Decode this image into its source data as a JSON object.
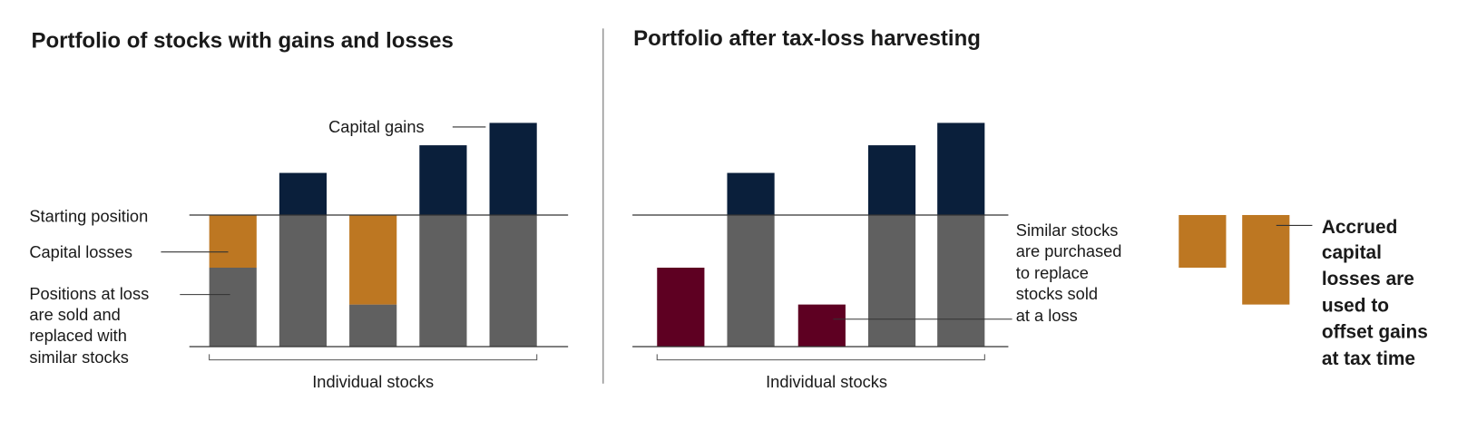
{
  "colors": {
    "gain": "#0a1f3b",
    "base": "#606060",
    "loss": "#bd7722",
    "replaced": "#5e0022",
    "divider": "#999999"
  },
  "left": {
    "title": "Portfolio of stocks with gains and losses",
    "labels": {
      "starting_position": "Starting position",
      "capital_losses": "Capital losses",
      "positions_at_loss": [
        "Positions at loss",
        "are sold and",
        "replaced with",
        "similar stocks"
      ],
      "capital_gains": "Capital gains",
      "x_axis": "Individual stocks"
    }
  },
  "right": {
    "title": "Portfolio after tax-loss harvesting",
    "labels": {
      "similar_stocks": [
        "Similar stocks",
        "are purchased",
        "to replace",
        "stocks sold",
        "at a loss"
      ],
      "accrued": [
        "Accrued",
        "capital",
        "losses are",
        "used to",
        "offset gains",
        "at tax time"
      ],
      "x_axis": "Individual stocks"
    }
  },
  "chart_data": [
    {
      "type": "bar",
      "title": "Portfolio of stocks with gains and losses",
      "xlabel": "Individual stocks",
      "starting_position": 100,
      "stocks": [
        {
          "value": 60,
          "loss": 40,
          "gain": 0
        },
        {
          "value": 100,
          "loss": 0,
          "gain": 32
        },
        {
          "value": 32,
          "loss": 68,
          "gain": 0
        },
        {
          "value": 100,
          "loss": 0,
          "gain": 53
        },
        {
          "value": 100,
          "loss": 0,
          "gain": 70
        }
      ]
    },
    {
      "type": "bar",
      "title": "Portfolio after tax-loss harvesting",
      "xlabel": "Individual stocks",
      "starting_position": 100,
      "stocks": [
        {
          "value": 60,
          "replaced": true,
          "gain": 0
        },
        {
          "value": 100,
          "replaced": false,
          "gain": 32
        },
        {
          "value": 32,
          "replaced": true,
          "gain": 0
        },
        {
          "value": 100,
          "replaced": false,
          "gain": 53
        },
        {
          "value": 100,
          "replaced": false,
          "gain": 70
        }
      ],
      "accrued_losses": [
        40,
        68
      ]
    }
  ]
}
